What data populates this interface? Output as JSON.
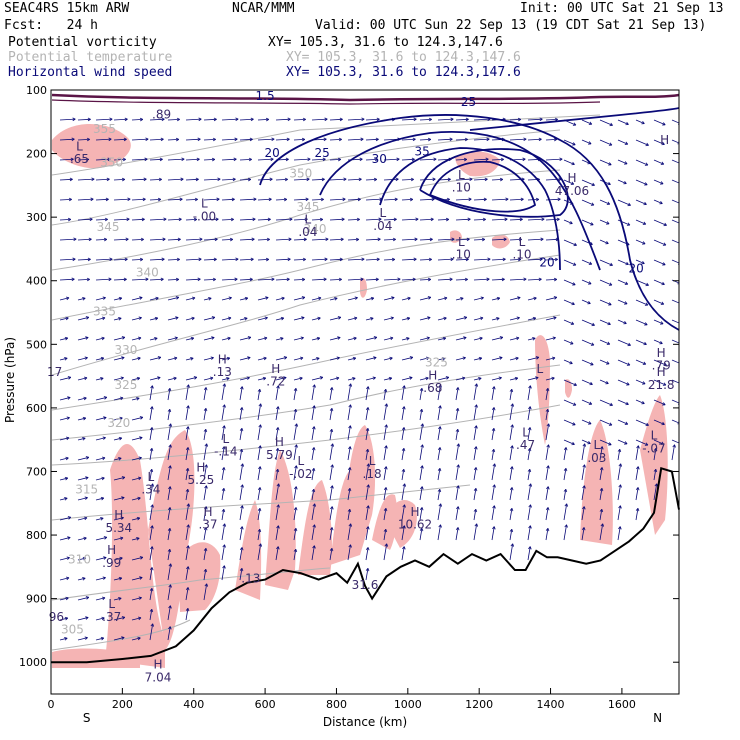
{
  "header": {
    "line1_left": "SEAC4RS 15km ARW",
    "line1_center": "NCAR/MMM",
    "line1_right": "Init: 00 UTC Sat 21 Sep 13",
    "line2_left": "Fcst:   24 h",
    "line2_right": "Valid: 00 UTC Sun 22 Sep 13 (19 CDT Sat 21 Sep 13)",
    "fields": [
      {
        "name": "Potential vorticity",
        "xy": "XY= 105.3, 31.6 to 124.3,147.6",
        "color": "#000000"
      },
      {
        "name": "Potential temperature",
        "xy": "XY= 105.3, 31.6 to 124.3,147.6",
        "color": "#b4b4b4"
      },
      {
        "name": "Horizontal wind speed",
        "xy": "XY= 105.3, 31.6 to 124.3,147.6",
        "color": "#0a0a78"
      }
    ]
  },
  "colors": {
    "pv_fill": "#f5b4b4",
    "theta": "#b4b4b4",
    "wind": "#0a0a78",
    "terrain": "#000000",
    "tropopause": "#5a1446"
  },
  "chart_data": {
    "type": "line",
    "xlabel": "Distance (km)",
    "ylabel": "Pressure (hPa)",
    "xlim": [
      0,
      1760
    ],
    "ylim": [
      1050,
      100
    ],
    "x_ticks": [
      0,
      200,
      400,
      600,
      800,
      1000,
      1200,
      1400,
      1600
    ],
    "y_ticks": [
      100,
      200,
      300,
      400,
      500,
      600,
      700,
      800,
      900,
      1000
    ],
    "endpoint_labels": {
      "left": "S",
      "right": "N"
    },
    "terrain_profile": {
      "x": [
        0,
        100,
        200,
        280,
        350,
        400,
        450,
        500,
        550,
        600,
        650,
        700,
        750,
        800,
        830,
        860,
        880,
        900,
        940,
        980,
        1020,
        1060,
        1100,
        1140,
        1180,
        1220,
        1260,
        1300,
        1330,
        1360,
        1390,
        1420,
        1460,
        1500,
        1540,
        1580,
        1620,
        1660,
        1690,
        1710,
        1740,
        1760
      ],
      "p": [
        1000,
        1000,
        995,
        990,
        975,
        950,
        915,
        890,
        875,
        870,
        855,
        860,
        870,
        860,
        875,
        845,
        880,
        900,
        865,
        850,
        840,
        850,
        830,
        845,
        830,
        840,
        830,
        855,
        855,
        825,
        835,
        835,
        840,
        845,
        840,
        825,
        810,
        790,
        765,
        695,
        700,
        760
      ]
    },
    "wind_speed_contours": {
      "levels": [
        20,
        25,
        30,
        35
      ],
      "labels": [
        {
          "text": "20",
          "x": 620,
          "p": 205
        },
        {
          "text": "25",
          "x": 760,
          "p": 205
        },
        {
          "text": "30",
          "x": 920,
          "p": 215
        },
        {
          "text": "35",
          "x": 1040,
          "p": 203
        },
        {
          "text": "25",
          "x": 1170,
          "p": 125
        },
        {
          "text": "20",
          "x": 1390,
          "p": 378
        },
        {
          "text": "20",
          "x": 1640,
          "p": 387
        },
        {
          "text": "1.5",
          "x": 600,
          "p": 116
        }
      ]
    },
    "potential_temperature_contours": {
      "levels": [
        305,
        310,
        315,
        320,
        325,
        330,
        335,
        340,
        345,
        350,
        355
      ],
      "labels": [
        {
          "text": "355",
          "x": 150,
          "p": 168
        },
        {
          "text": "350",
          "x": 170,
          "p": 220
        },
        {
          "text": "345",
          "x": 160,
          "p": 322
        },
        {
          "text": "340",
          "x": 270,
          "p": 393
        },
        {
          "text": "335",
          "x": 150,
          "p": 455
        },
        {
          "text": "330",
          "x": 210,
          "p": 515
        },
        {
          "text": "325",
          "x": 210,
          "p": 570
        },
        {
          "text": "320",
          "x": 190,
          "p": 630
        },
        {
          "text": "315",
          "x": 100,
          "p": 735
        },
        {
          "text": "310",
          "x": 80,
          "p": 845
        },
        {
          "text": "305",
          "x": 60,
          "p": 955
        },
        {
          "text": "345",
          "x": 720,
          "p": 290
        },
        {
          "text": "340",
          "x": 740,
          "p": 325
        },
        {
          "text": "325",
          "x": 1080,
          "p": 535
        },
        {
          "text": "350",
          "x": 700,
          "p": 238
        }
      ]
    },
    "pv_extrema": [
      {
        "kind": "L",
        "value": ".65",
        "x": 80,
        "p": 195
      },
      {
        "kind": "L",
        "value": "-.00",
        "x": 430,
        "p": 285
      },
      {
        "kind": "L",
        "value": ".04",
        "x": 720,
        "p": 310
      },
      {
        "kind": "L",
        "value": ".04",
        "x": 930,
        "p": 300
      },
      {
        "kind": "L",
        "value": ".10",
        "x": 1150,
        "p": 345
      },
      {
        "kind": "L",
        "value": ".10",
        "x": 1320,
        "p": 345
      },
      {
        "kind": "L",
        "value": ".10",
        "x": 1150,
        "p": 240
      },
      {
        "kind": "H",
        "value": "47.06",
        "x": 1460,
        "p": 245
      },
      {
        "kind": "H",
        "value": ".13",
        "x": 480,
        "p": 530
      },
      {
        "kind": "H",
        "value": ".72",
        "x": 630,
        "p": 545
      },
      {
        "kind": "H",
        "value": ".68",
        "x": 1070,
        "p": 555
      },
      {
        "kind": "L",
        "value": "-.14",
        "x": 490,
        "p": 655
      },
      {
        "kind": "H",
        "value": "5.79",
        "x": 640,
        "p": 660
      },
      {
        "kind": "L",
        "value": "-.02",
        "x": 700,
        "p": 690
      },
      {
        "kind": "L",
        "value": ".18",
        "x": 900,
        "p": 690
      },
      {
        "kind": "L",
        "value": ".34",
        "x": 280,
        "p": 715
      },
      {
        "kind": "H",
        "value": "5.25",
        "x": 420,
        "p": 700
      },
      {
        "kind": "H",
        "value": ".37",
        "x": 440,
        "p": 770
      },
      {
        "kind": "H",
        "value": "10.62",
        "x": 1020,
        "p": 770
      },
      {
        "kind": "H",
        "value": "5.34",
        "x": 190,
        "p": 775
      },
      {
        "kind": "H",
        "value": ".99",
        "x": 170,
        "p": 830
      },
      {
        "kind": "L",
        "value": ".37",
        "x": 170,
        "p": 915
      },
      {
        "kind": "H",
        "value": "7.04",
        "x": 300,
        "p": 1010
      },
      {
        "kind": "L",
        "value": ".47",
        "x": 1330,
        "p": 645
      },
      {
        "kind": "L",
        "value": ".03",
        "x": 1530,
        "p": 665
      },
      {
        "kind": "L",
        "value": "-.07",
        "x": 1690,
        "p": 650
      },
      {
        "kind": "H",
        "value": ".79",
        "x": 1710,
        "p": 520
      },
      {
        "kind": "H",
        "value": "21.8",
        "x": 1710,
        "p": 550
      },
      {
        "kind": "L",
        "value": "",
        "x": 1370,
        "p": 545
      },
      {
        "kind": "H",
        "value": "",
        "x": 1720,
        "p": 185
      }
    ],
    "misc_labels": [
      {
        "text": "17",
        "x": 10,
        "p": 550
      },
      {
        "text": "96",
        "x": 15,
        "p": 935
      },
      {
        "text": ".13",
        "x": 560,
        "p": 875
      },
      {
        "text": ".89",
        "x": 310,
        "p": 145
      },
      {
        "text": "31.6",
        "x": 880,
        "p": 885
      }
    ]
  }
}
